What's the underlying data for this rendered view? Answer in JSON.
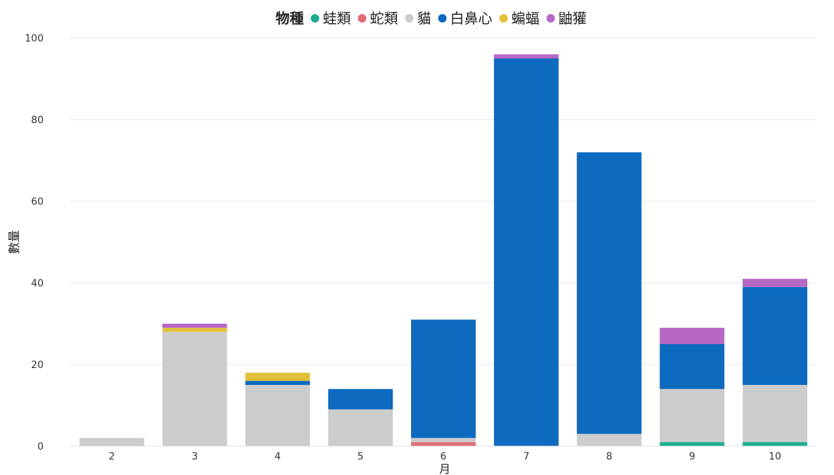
{
  "chart_data": {
    "type": "bar",
    "stacked": true,
    "legend": {
      "title": "物種",
      "position": "top"
    },
    "xlabel": "月",
    "ylabel": "數量",
    "categories": [
      "2",
      "3",
      "4",
      "5",
      "6",
      "7",
      "8",
      "9",
      "10"
    ],
    "ylim": [
      0,
      100
    ],
    "yticks": [
      0,
      20,
      40,
      60,
      80,
      100
    ],
    "grid": true,
    "series": [
      {
        "name": "蛙類",
        "color": "#1aae8f",
        "values": [
          0,
          0,
          0,
          0,
          0,
          0,
          0,
          1,
          1
        ]
      },
      {
        "name": "蛇類",
        "color": "#e06c75",
        "values": [
          0,
          0,
          0,
          0,
          1,
          0,
          0,
          0,
          0
        ]
      },
      {
        "name": "貓",
        "color": "#cccccc",
        "values": [
          2,
          28,
          15,
          9,
          1,
          0,
          3,
          13,
          14
        ]
      },
      {
        "name": "白鼻心",
        "color": "#0e6abf",
        "values": [
          0,
          0,
          1,
          5,
          29,
          95,
          69,
          11,
          24
        ]
      },
      {
        "name": "蝙蝠",
        "color": "#e2c13a",
        "values": [
          0,
          1,
          2,
          0,
          0,
          0,
          0,
          0,
          0
        ]
      },
      {
        "name": "鼬獾",
        "color": "#b767c6",
        "values": [
          0,
          1,
          0,
          0,
          0,
          1,
          0,
          4,
          2
        ]
      }
    ]
  }
}
